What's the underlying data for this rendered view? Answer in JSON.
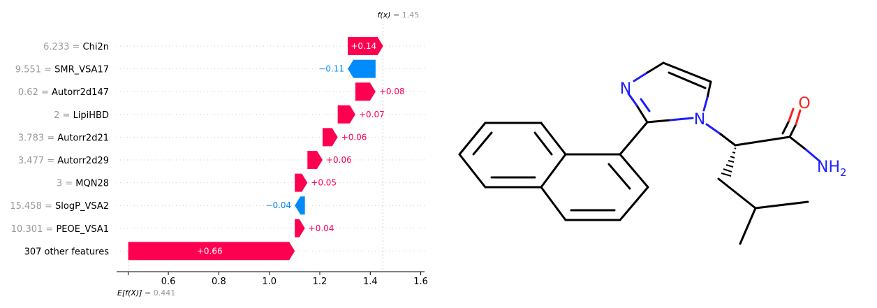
{
  "chart_data": {
    "type": "waterfall",
    "fx_label": "f(x)",
    "fx_value": "1.45",
    "base_label": "E[f(X)]",
    "base_value": "0.441",
    "xlim": [
      0.395,
      1.615
    ],
    "x_ticks": [
      "0.6",
      "0.8",
      "1.0",
      "1.2",
      "1.4",
      "1.6"
    ],
    "x_tick_values": [
      0.6,
      0.8,
      1.0,
      1.2,
      1.4,
      1.6
    ],
    "colors": {
      "positive": "#ff0051",
      "negative": "#008bfb"
    },
    "features": [
      {
        "value": "6.233",
        "sep": " = ",
        "name": "Chi2n",
        "contribution": 0.14,
        "label": "+0.14"
      },
      {
        "value": "9.551",
        "sep": " = ",
        "name": "SMR_VSA17",
        "contribution": -0.11,
        "label": "−0.11"
      },
      {
        "value": "0.62",
        "sep": " = ",
        "name": "Autorr2d147",
        "contribution": 0.08,
        "label": "+0.08"
      },
      {
        "value": "2",
        "sep": " = ",
        "name": "LipiHBD",
        "contribution": 0.07,
        "label": "+0.07"
      },
      {
        "value": "3.783",
        "sep": " = ",
        "name": "Autorr2d21",
        "contribution": 0.06,
        "label": "+0.06"
      },
      {
        "value": "3.477",
        "sep": " = ",
        "name": "Autorr2d29",
        "contribution": 0.06,
        "label": "+0.06"
      },
      {
        "value": "3",
        "sep": " = ",
        "name": "MQN28",
        "contribution": 0.05,
        "label": "+0.05"
      },
      {
        "value": "15.458",
        "sep": " = ",
        "name": "SlogP_VSA2",
        "contribution": -0.04,
        "label": "−0.04"
      },
      {
        "value": "10.301",
        "sep": " = ",
        "name": "PEOE_VSA1",
        "contribution": 0.04,
        "label": "+0.04"
      },
      {
        "value": "",
        "sep": "",
        "name": "307 other features",
        "contribution": 0.66,
        "label": "+0.66"
      }
    ]
  },
  "molecule": {
    "atom_labels": {
      "n_imine": "N",
      "n_ring": "N",
      "oxygen": "O",
      "amine": "NH",
      "amine_sub": "2"
    },
    "colors": {
      "nitrogen": "#1e1eff",
      "oxygen": "#ff1e1e",
      "bond": "#000000"
    }
  }
}
